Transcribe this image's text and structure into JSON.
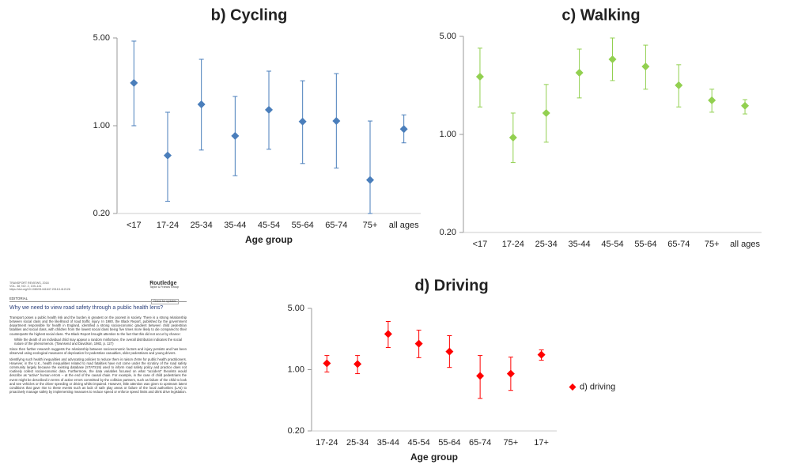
{
  "chart_data": [
    {
      "type": "errorbar",
      "title": "b) Cycling",
      "x_label": "Age group",
      "log_scale": true,
      "categories": [
        "<17",
        "17-24",
        "25-34",
        "35-44",
        "45-54",
        "55-64",
        "65-74",
        "75+",
        "all ages"
      ],
      "series": [
        {
          "color": "#4a7ebb",
          "values": [
            2.19,
            0.58,
            1.48,
            0.83,
            1.34,
            1.08,
            1.09,
            0.37,
            0.94
          ],
          "lower": [
            1.0,
            0.25,
            0.64,
            0.4,
            0.65,
            0.5,
            0.46,
            0.2,
            0.73
          ],
          "upper": [
            4.72,
            1.28,
            3.38,
            1.71,
            2.72,
            2.28,
            2.6,
            1.09,
            1.22
          ]
        }
      ],
      "ylim": [
        0.2,
        5
      ],
      "yticks": [
        {
          "value": 0.2,
          "label": "0.20"
        },
        {
          "value": 1,
          "label": "1.00"
        },
        {
          "value": 5,
          "label": "5.00"
        }
      ]
    },
    {
      "type": "errorbar",
      "title": "c) Walking",
      "log_scale": true,
      "categories": [
        "<17",
        "17-24",
        "25-34",
        "35-44",
        "45-54",
        "55-64",
        "65-74",
        "75+",
        "all ages"
      ],
      "series": [
        {
          "color": "#92d050",
          "values": [
            2.58,
            0.95,
            1.42,
            2.75,
            3.43,
            3.05,
            2.24,
            1.75,
            1.6
          ],
          "lower": [
            1.57,
            0.63,
            0.88,
            1.82,
            2.42,
            2.1,
            1.57,
            1.44,
            1.4
          ],
          "upper": [
            4.12,
            1.42,
            2.27,
            4.06,
            4.87,
            4.33,
            3.14,
            2.1,
            1.77
          ]
        }
      ],
      "ylim": [
        0.2,
        5
      ],
      "yticks": [
        {
          "value": 0.2,
          "label": "0.20"
        },
        {
          "value": 1,
          "label": "1.00"
        },
        {
          "value": 5,
          "label": "5.00"
        }
      ]
    },
    {
      "type": "errorbar",
      "title": "d) Driving",
      "x_label": "Age group",
      "log_scale": true,
      "legend": "right",
      "categories": [
        "17-24",
        "25-34",
        "35-44",
        "45-54",
        "55-64",
        "65-74",
        "75+",
        "17+"
      ],
      "series": [
        {
          "name": "d) driving",
          "color": "#ff0000",
          "values": [
            1.18,
            1.16,
            2.55,
            1.98,
            1.61,
            0.85,
            0.9,
            1.48
          ],
          "lower": [
            0.94,
            0.9,
            1.79,
            1.37,
            1.06,
            0.47,
            0.58,
            1.28
          ],
          "upper": [
            1.45,
            1.45,
            3.55,
            2.82,
            2.44,
            1.45,
            1.39,
            1.68
          ]
        }
      ],
      "ylim": [
        0.2,
        5
      ],
      "yticks": [
        {
          "value": 0.2,
          "label": "0.20"
        },
        {
          "value": 1,
          "label": "1.00"
        },
        {
          "value": 5,
          "label": "5.00"
        }
      ]
    }
  ],
  "document": {
    "journal": [
      "TRANSPORT REVIEWS, 2018",
      "VOL. 38, NO. 2, 139–141",
      "https://doi.org/10.1080/01441647.2018.1412126"
    ],
    "publisher": "Routledge",
    "publisher_sub": "Taylor & Francis Group",
    "updates": "Check for updates",
    "section": "EDITORIAL",
    "title": "Why we need to view road safety through a public health lens?",
    "paragraphs": [
      "Transport poses a public health risk and the burden is greatest on the poorest in society. There is a strong relationship between social class and the likelihood of road traffic injury. In 1980, the Black Report, published by the government department responsible for health in England, identified a strong socioeconomic gradient between child pedestrian fatalities and social class, with children from the lowest social class being five times more likely to die compared to their counterparts the highest social class. The Black Report brought attention to the fact that this did not occur by chance:",
      "While the death of an individual child may appear a random misfortune, the overall distribution indicates the social nature of the phenomenon. (Townsend and Davidson, 1982, p. 127)",
      "Since then further research suggests the relationship between socioeconomic factors and injury persists and has been observed using ecological measures of deprivation for pedestrian casualties, older pedestrians and young drivers.",
      "Identifying such health inequalities and advocating policies to reduce them is raison d'etre for public health practitioners. However, in the U.K., health inequalities related to road fatalities have not come under the scrutiny of the road safety community largely because the existing database (STATS19) used to inform road safety policy and practice does not routinely collect socioeconomic data. Furthermore, the data variables focused on what “accident” theorists would describe as “active” human errors – at the end of the causal chain. For example, in the case of child pedestrians the event might be described in terms of active errors committed by the collision partners, such as failure of the child to look and see vehicles or the driver speeding or driving whilst impaired. However, little attention was given to upstream latent conditions that gave rise to these events such as lack of safe play areas or failure of the local authorities (LAs) to proactively manage safety by implementing measures to reduce speed or enforce speed limits and drink drive legislation."
    ]
  }
}
